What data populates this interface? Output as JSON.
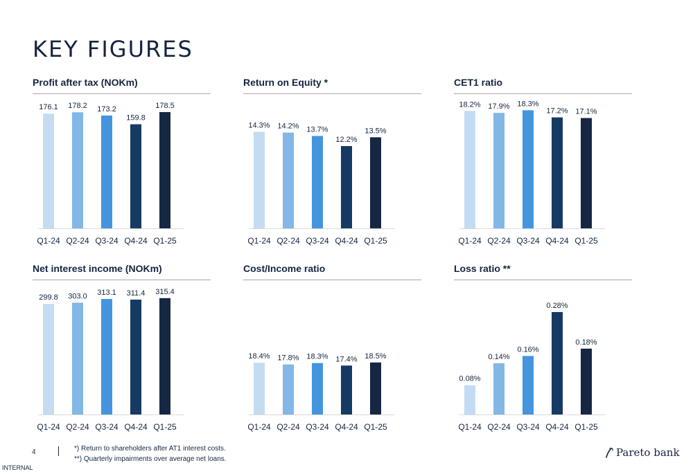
{
  "page": {
    "title": "KEY FIGURES",
    "page_number": "4",
    "classification": "INTERNAL",
    "footnotes": [
      "*) Return to shareholders after AT1 interest costs.",
      "**) Quarterly impairments over average net loans."
    ],
    "logo_text": "Pareto bank"
  },
  "colors": {
    "bars": [
      "#c3dcf2",
      "#82b7e6",
      "#4495dd",
      "#153a63",
      "#152743"
    ],
    "text": "#14243f",
    "rule": "#a8a8a8"
  },
  "chart_data": [
    {
      "type": "bar",
      "title": "Profit after tax (NOKm)",
      "categories": [
        "Q1-24",
        "Q2-24",
        "Q3-24",
        "Q4-24",
        "Q1-25"
      ],
      "values": [
        176.1,
        178.2,
        173.2,
        159.8,
        178.5
      ],
      "labels": [
        "176.1",
        "178.2",
        "173.2",
        "159.8",
        "178.5"
      ],
      "ylim": [
        0,
        205
      ]
    },
    {
      "type": "bar",
      "title": "Return on Equity *",
      "categories": [
        "Q1-24",
        "Q2-24",
        "Q3-24",
        "Q4-24",
        "Q1-25"
      ],
      "values": [
        14.3,
        14.2,
        13.7,
        12.2,
        13.5
      ],
      "labels": [
        "14.3%",
        "14.2%",
        "13.7%",
        "12.2%",
        "13.5%"
      ],
      "ylim": [
        0,
        19.8
      ]
    },
    {
      "type": "bar",
      "title": "CET1 ratio",
      "categories": [
        "Q1-24",
        "Q2-24",
        "Q3-24",
        "Q4-24",
        "Q1-25"
      ],
      "values": [
        18.2,
        17.9,
        18.3,
        17.2,
        17.1
      ],
      "labels": [
        "18.2%",
        "17.9%",
        "18.3%",
        "17.2%",
        "17.1%"
      ],
      "ylim": [
        0,
        20.7
      ]
    },
    {
      "type": "bar",
      "title": "Net interest income (NOKm)",
      "categories": [
        "Q1-24",
        "Q2-24",
        "Q3-24",
        "Q4-24",
        "Q1-25"
      ],
      "values": [
        299.8,
        303.0,
        313.1,
        311.4,
        315.4
      ],
      "labels": [
        "299.8",
        "303.0",
        "313.1",
        "311.4",
        "315.4"
      ],
      "ylim": [
        0,
        362
      ]
    },
    {
      "type": "bar",
      "title": "Cost/Income ratio",
      "categories": [
        "Q1-24",
        "Q2-24",
        "Q3-24",
        "Q4-24",
        "Q1-25"
      ],
      "values": [
        18.4,
        17.8,
        18.3,
        17.4,
        18.5
      ],
      "labels": [
        "18.4%",
        "17.8%",
        "18.3%",
        "17.4%",
        "18.5%"
      ],
      "ylim": [
        0,
        47.5
      ]
    },
    {
      "type": "bar",
      "title": "Loss ratio **",
      "categories": [
        "Q1-24",
        "Q2-24",
        "Q3-24",
        "Q4-24",
        "Q1-25"
      ],
      "values": [
        0.08,
        0.14,
        0.16,
        0.28,
        0.18
      ],
      "labels": [
        "0.08%",
        "0.14%",
        "0.16%",
        "0.28%",
        "0.18%"
      ],
      "ylim": [
        0,
        0.365
      ]
    }
  ]
}
